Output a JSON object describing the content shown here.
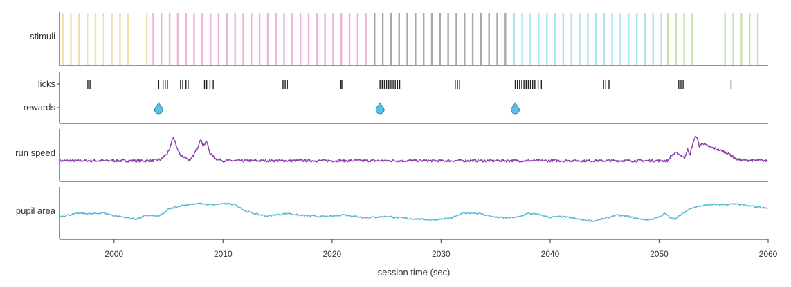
{
  "chart_data": {
    "type": "line",
    "xlabel": "session time (sec)",
    "xlim": [
      1995,
      2060
    ],
    "x_ticks": [
      2000,
      2010,
      2020,
      2030,
      2040,
      2050,
      2060
    ],
    "grid": false,
    "panels": {
      "stimuli": {
        "label": "stimuli",
        "blocks": [
          {
            "color": "#f0dfa6",
            "start": 1995.3,
            "end": 2001.9,
            "period": 0.75,
            "extra": [
              2003.0
            ]
          },
          {
            "color": "#f0b3d8",
            "start": 2003.6,
            "end": 2023.4,
            "period": 0.75
          },
          {
            "color": "#a8a8a8",
            "start": 2023.9,
            "end": 2036.0,
            "period": 0.75
          },
          {
            "color": "#aee3f2",
            "start": 2036.7,
            "end": 2050.3,
            "period": 0.75
          },
          {
            "color": "#c6e2b0",
            "start": 2050.8,
            "end": 2059.6,
            "period": 0.75,
            "gaps": [
              [
                2053.3,
                2056.0
              ]
            ]
          }
        ]
      },
      "licks": {
        "label": "licks",
        "times": [
          1997.6,
          1997.8,
          2004.1,
          2004.5,
          2004.7,
          2004.9,
          2006.1,
          2006.3,
          2006.6,
          2006.8,
          2008.3,
          2008.5,
          2008.8,
          2009.1,
          2015.5,
          2015.7,
          2015.9,
          2020.8,
          2020.9,
          2024.4,
          2024.6,
          2024.8,
          2025.0,
          2025.2,
          2025.4,
          2025.6,
          2025.8,
          2026.0,
          2026.2,
          2031.3,
          2031.5,
          2031.7,
          2036.8,
          2037.0,
          2037.2,
          2037.4,
          2037.6,
          2037.8,
          2038.0,
          2038.2,
          2038.4,
          2038.6,
          2038.9,
          2039.2,
          2044.9,
          2045.1,
          2045.4,
          2051.8,
          2052.0,
          2052.2,
          2056.6
        ]
      },
      "rewards": {
        "label": "rewards",
        "times": [
          2004.1,
          2024.4,
          2036.8
        ],
        "color": "#56c1ea"
      },
      "run_speed": {
        "label": "run speed",
        "color": "#8a3fa8",
        "points": [
          [
            1995,
            0.0
          ],
          [
            2003.5,
            0.0
          ],
          [
            2004.3,
            0.05
          ],
          [
            2004.8,
            0.25
          ],
          [
            2005.1,
            0.4
          ],
          [
            2005.4,
            0.95
          ],
          [
            2005.7,
            0.6
          ],
          [
            2006.1,
            0.2
          ],
          [
            2006.6,
            0.12
          ],
          [
            2007.0,
            0.0
          ],
          [
            2007.4,
            0.3
          ],
          [
            2007.7,
            0.55
          ],
          [
            2007.9,
            0.85
          ],
          [
            2008.2,
            0.6
          ],
          [
            2008.5,
            0.75
          ],
          [
            2008.8,
            0.3
          ],
          [
            2009.3,
            0.08
          ],
          [
            2010.0,
            0.0
          ],
          [
            2050.8,
            0.0
          ],
          [
            2051.1,
            0.2
          ],
          [
            2051.5,
            0.3
          ],
          [
            2051.9,
            0.25
          ],
          [
            2052.3,
            0.1
          ],
          [
            2052.6,
            0.45
          ],
          [
            2052.8,
            0.2
          ],
          [
            2053.1,
            0.7
          ],
          [
            2053.4,
            1.0
          ],
          [
            2053.7,
            0.55
          ],
          [
            2054.0,
            0.7
          ],
          [
            2054.5,
            0.55
          ],
          [
            2055.0,
            0.5
          ],
          [
            2055.5,
            0.42
          ],
          [
            2056.0,
            0.35
          ],
          [
            2056.5,
            0.25
          ],
          [
            2057.0,
            0.08
          ],
          [
            2057.5,
            0.02
          ],
          [
            2060,
            0.0
          ]
        ]
      },
      "pupil_area": {
        "label": "pupil area",
        "color": "#5bb8d4",
        "points": [
          [
            1995,
            0.32
          ],
          [
            1996,
            0.38
          ],
          [
            1997,
            0.43
          ],
          [
            1998,
            0.4
          ],
          [
            1999,
            0.44
          ],
          [
            2000,
            0.35
          ],
          [
            2001,
            0.3
          ],
          [
            2002,
            0.24
          ],
          [
            2003,
            0.36
          ],
          [
            2004,
            0.33
          ],
          [
            2004.5,
            0.4
          ],
          [
            2005,
            0.55
          ],
          [
            2006,
            0.65
          ],
          [
            2007,
            0.7
          ],
          [
            2008,
            0.72
          ],
          [
            2009,
            0.68
          ],
          [
            2010,
            0.72
          ],
          [
            2011,
            0.7
          ],
          [
            2011.5,
            0.62
          ],
          [
            2012,
            0.5
          ],
          [
            2013,
            0.4
          ],
          [
            2014,
            0.34
          ],
          [
            2015,
            0.38
          ],
          [
            2016,
            0.42
          ],
          [
            2017,
            0.36
          ],
          [
            2018,
            0.34
          ],
          [
            2019,
            0.32
          ],
          [
            2020,
            0.33
          ],
          [
            2021,
            0.38
          ],
          [
            2022,
            0.34
          ],
          [
            2023,
            0.29
          ],
          [
            2024,
            0.3
          ],
          [
            2025,
            0.33
          ],
          [
            2026,
            0.29
          ],
          [
            2027,
            0.26
          ],
          [
            2028,
            0.24
          ],
          [
            2029,
            0.22
          ],
          [
            2030,
            0.24
          ],
          [
            2031,
            0.28
          ],
          [
            2032,
            0.42
          ],
          [
            2033,
            0.44
          ],
          [
            2034,
            0.38
          ],
          [
            2035,
            0.3
          ],
          [
            2036,
            0.28
          ],
          [
            2037,
            0.3
          ],
          [
            2038,
            0.42
          ],
          [
            2039,
            0.38
          ],
          [
            2040,
            0.3
          ],
          [
            2041,
            0.32
          ],
          [
            2042,
            0.28
          ],
          [
            2043,
            0.22
          ],
          [
            2044,
            0.18
          ],
          [
            2045,
            0.26
          ],
          [
            2046,
            0.36
          ],
          [
            2047,
            0.34
          ],
          [
            2048,
            0.26
          ],
          [
            2049,
            0.22
          ],
          [
            2050,
            0.3
          ],
          [
            2050.5,
            0.42
          ],
          [
            2051,
            0.3
          ],
          [
            2051.5,
            0.25
          ],
          [
            2052,
            0.38
          ],
          [
            2053,
            0.6
          ],
          [
            2054,
            0.66
          ],
          [
            2055,
            0.7
          ],
          [
            2056,
            0.68
          ],
          [
            2057,
            0.72
          ],
          [
            2058,
            0.66
          ],
          [
            2059,
            0.62
          ],
          [
            2060,
            0.58
          ]
        ]
      }
    }
  }
}
